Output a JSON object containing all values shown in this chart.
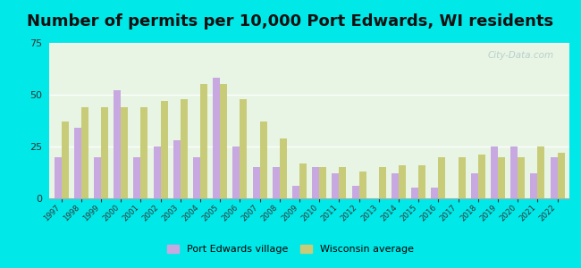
{
  "title": "Number of permits per 10,000 Port Edwards, WI residents",
  "years": [
    1997,
    1998,
    1999,
    2000,
    2001,
    2002,
    2003,
    2004,
    2005,
    2006,
    2007,
    2008,
    2009,
    2010,
    2011,
    2012,
    2013,
    2014,
    2015,
    2016,
    2017,
    2018,
    2019,
    2020,
    2021,
    2022
  ],
  "port_edwards": [
    20,
    34,
    20,
    52,
    20,
    25,
    28,
    20,
    58,
    25,
    15,
    15,
    6,
    15,
    12,
    6,
    0,
    12,
    5,
    5,
    0,
    12,
    25,
    25,
    12,
    20
  ],
  "wisconsin_avg": [
    37,
    44,
    44,
    44,
    44,
    47,
    48,
    55,
    55,
    48,
    37,
    29,
    17,
    15,
    15,
    13,
    15,
    16,
    16,
    20,
    20,
    21,
    20,
    20,
    25,
    22
  ],
  "port_color": "#c8a8e0",
  "wi_color": "#c8cc78",
  "ylim": [
    0,
    75
  ],
  "yticks": [
    0,
    25,
    50,
    75
  ],
  "bg_outer": "#00e8e8",
  "bg_plot": "#e8f5e4",
  "legend_port": "Port Edwards village",
  "legend_wi": "Wisconsin average",
  "title_fontsize": 13,
  "bar_width": 0.36
}
